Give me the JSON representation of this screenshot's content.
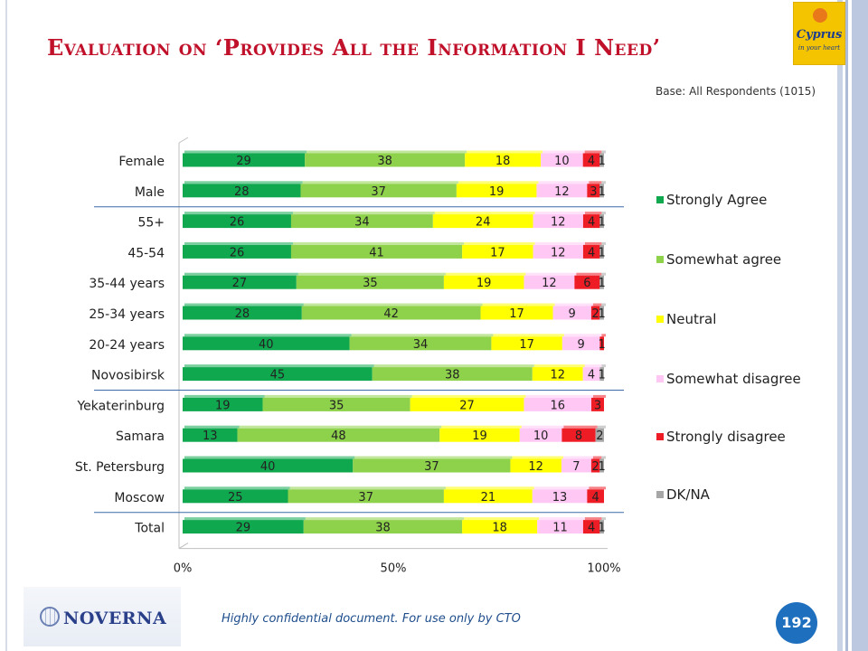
{
  "slide": {
    "title": "Evaluation on ‘Provides All the Information I Need’",
    "base_note": "Base: All Respondents (1015)",
    "footer_note": "Highly confidential document. For use only by CTO",
    "page_number": "192",
    "logo_text": "Cyprus",
    "logo_tagline": "in your heart",
    "company_logo_text": "NOVERNA"
  },
  "chart_data": {
    "type": "bar",
    "orientation": "horizontal",
    "stacked": true,
    "percent": true,
    "categories": [
      "Female",
      "Male",
      "55+",
      "45-54",
      "35-44 years",
      "25-34 years",
      "20-24 years",
      "Novosibirsk",
      "Yekaterinburg",
      "Samara",
      "St. Petersburg",
      "Moscow",
      "Total"
    ],
    "series": [
      {
        "name": "Strongly Agree",
        "color": "#10a84f",
        "values": [
          29,
          28,
          26,
          26,
          27,
          28,
          40,
          45,
          19,
          13,
          40,
          25,
          29
        ]
      },
      {
        "name": "Somewhat agree",
        "color": "#8ed14b",
        "values": [
          38,
          37,
          34,
          41,
          35,
          42,
          34,
          38,
          35,
          48,
          37,
          37,
          38
        ]
      },
      {
        "name": "Neutral",
        "color": "#ffff00",
        "values": [
          18,
          19,
          24,
          17,
          19,
          17,
          17,
          12,
          27,
          19,
          12,
          21,
          18
        ]
      },
      {
        "name": "Somewhat disagree",
        "color": "#ffc8f4",
        "values": [
          10,
          12,
          12,
          12,
          12,
          9,
          9,
          4,
          16,
          10,
          7,
          13,
          11
        ]
      },
      {
        "name": "Strongly disagree",
        "color": "#ee1c25",
        "values": [
          4,
          3,
          4,
          4,
          6,
          2,
          1,
          null,
          3,
          8,
          2,
          4,
          4
        ]
      },
      {
        "name": "DK/NA",
        "color": "#a6a6a6",
        "values": [
          1,
          1,
          1,
          1,
          1,
          1,
          null,
          1,
          null,
          2,
          1,
          null,
          1
        ]
      }
    ],
    "xlim": [
      0,
      100
    ],
    "x_ticks": [
      "0%",
      "50%",
      "100%"
    ],
    "legend_position": "right",
    "group_separators_after": [
      "Male",
      "Novosibirsk",
      "Moscow"
    ]
  }
}
